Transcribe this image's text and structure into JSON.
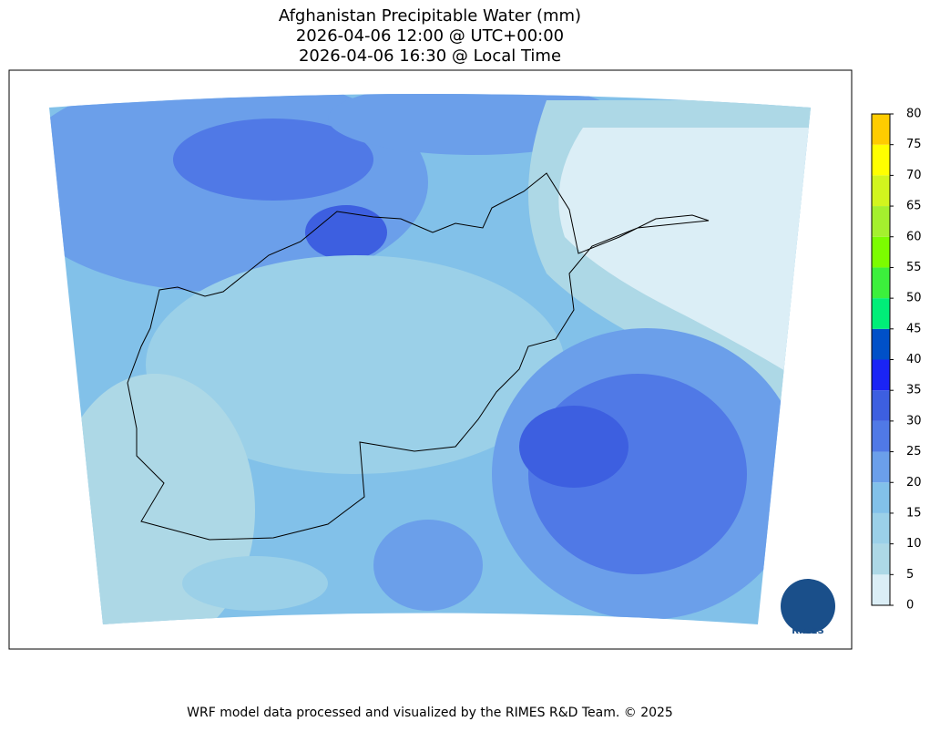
{
  "title": [
    "Afghanistan Precipitable Water (mm)",
    "2026-04-06 12:00 @ UTC+00:00",
    "2026-04-06 16:30 @ Local Time"
  ],
  "colorbar": {
    "ticks": [
      0,
      5,
      10,
      15,
      20,
      25,
      30,
      35,
      40,
      45,
      50,
      55,
      60,
      65,
      70,
      75,
      80
    ],
    "colors": [
      "#dbeef6",
      "#add8e6",
      "#9bd0e8",
      "#82c1e9",
      "#6b9fea",
      "#5079e6",
      "#3d5fe0",
      "#1a24f5",
      "#0050c8",
      "#00ee78",
      "#3cf03c",
      "#7cfc00",
      "#a4f02e",
      "#d2f51e",
      "#ffff00",
      "#ffcc00"
    ]
  },
  "logo": "RIMES",
  "footer": "WRF model data processed and visualized by the RIMES R&D Team. © 2025"
}
